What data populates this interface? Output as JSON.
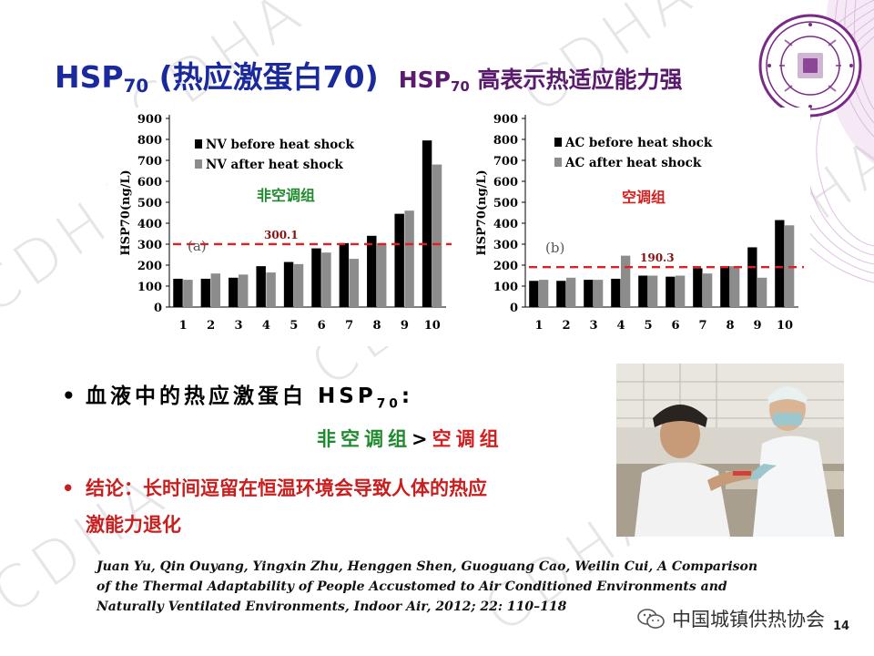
{
  "slide": {
    "title_main": "HSP",
    "title_main_sub": "70",
    "title_main_rest": " (热应激蛋白70)",
    "title_side": "HSP",
    "title_side_sub": "70",
    "title_side_rest": " 高表示热适应能力强",
    "watermark": "CDHA",
    "page_number": "14"
  },
  "chart_data": [
    {
      "type": "bar",
      "panel_label": "(a)",
      "group_label": "非空调组",
      "ylabel": "HSP70(ng/L)",
      "ylim": [
        0,
        900
      ],
      "yticks": [
        "0",
        "100",
        "200",
        "300",
        "400",
        "500",
        "600",
        "700",
        "800",
        "900"
      ],
      "categories": [
        "1",
        "2",
        "3",
        "4",
        "5",
        "6",
        "7",
        "8",
        "9",
        "10"
      ],
      "series": [
        {
          "name": "NV before heat shock",
          "color": "#000000",
          "values": [
            135,
            135,
            140,
            195,
            215,
            280,
            305,
            340,
            445,
            795
          ]
        },
        {
          "name": "NV after heat shock",
          "color": "#8c8c8c",
          "values": [
            130,
            160,
            155,
            165,
            205,
            260,
            230,
            305,
            460,
            680
          ]
        }
      ],
      "reference_line": {
        "value": 300.1,
        "label": "300.1",
        "color": "#e02020"
      },
      "grid": false,
      "legend": "top-left"
    },
    {
      "type": "bar",
      "panel_label": "(b)",
      "group_label": "空调组",
      "ylabel": "HSP70(ng/L)",
      "ylim": [
        0,
        900
      ],
      "yticks": [
        "0",
        "100",
        "200",
        "300",
        "400",
        "500",
        "600",
        "700",
        "800",
        "900"
      ],
      "categories": [
        "1",
        "2",
        "3",
        "4",
        "5",
        "6",
        "7",
        "8",
        "9",
        "10"
      ],
      "series": [
        {
          "name": "AC before heat shock",
          "color": "#000000",
          "values": [
            125,
            125,
            130,
            135,
            150,
            145,
            185,
            195,
            285,
            415
          ]
        },
        {
          "name": "AC after heat shock",
          "color": "#8c8c8c",
          "values": [
            130,
            140,
            130,
            245,
            150,
            150,
            160,
            195,
            140,
            390
          ]
        }
      ],
      "reference_line": {
        "value": 190.3,
        "label": "190.3",
        "color": "#e02020"
      },
      "grid": false,
      "legend": "top-left"
    }
  ],
  "bullets": {
    "bullet1_text": "血液中的热应激蛋白 HSP",
    "bullet1_sub": "70",
    "bullet1_colon": ":",
    "compare_left": "非空调组",
    "compare_op": ">",
    "compare_right": "空调组",
    "conclusion_line1": "结论：长时间逗留在恒温环境会导致人体的热应",
    "conclusion_line2": "激能力退化"
  },
  "reference": {
    "line1": "Juan Yu, Qin Ouyang, Yingxin Zhu, Henggen Shen, Guoguang Cao, Weilin Cui,  A Comparison",
    "line2": "of the  Thermal Adaptability of People Accustomed to Air Conditioned Environments and",
    "line3": "Naturally Ventilated Environments, Indoor Air, 2012; 22: 110–118"
  },
  "wechat": {
    "account": "中国城镇供热协会"
  },
  "colors": {
    "title_blue": "#1a2a9c",
    "title_purple": "#5a1a6e",
    "green": "#1f8a2e",
    "red": "#d21f1f",
    "purple_deco": "#b05cb8"
  }
}
